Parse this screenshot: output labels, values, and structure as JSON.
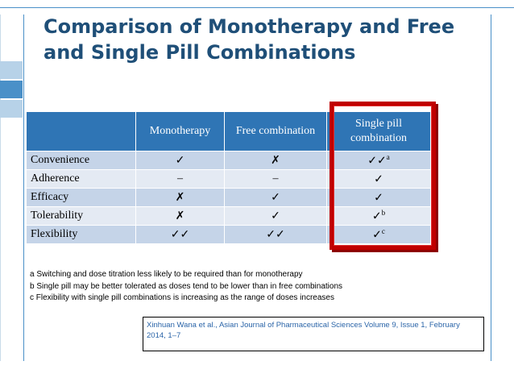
{
  "title": "Comparison of Monotherapy and Free and Single Pill Combinations",
  "table": {
    "headers": [
      "",
      "Monotherapy",
      "Free combination",
      "Single pill combination"
    ],
    "rows": [
      {
        "label": "Convenience",
        "mono": "✓",
        "free": "✗",
        "single": "✓✓",
        "single_sup": "a"
      },
      {
        "label": "Adherence",
        "mono": "–",
        "free": "–",
        "single": "✓",
        "single_sup": ""
      },
      {
        "label": "Efficacy",
        "mono": "✗",
        "free": "✓",
        "single": "✓",
        "single_sup": ""
      },
      {
        "label": "Tolerability",
        "mono": "✗",
        "free": "✓",
        "single": "✓",
        "single_sup": "b"
      },
      {
        "label": "Flexibility",
        "mono": "✓✓",
        "free": "✓✓",
        "single": "✓",
        "single_sup": "c"
      }
    ]
  },
  "footnotes": [
    "a Switching and dose titration less likely to be required than for monotherapy",
    "b Single pill may be better tolerated as doses tend to be lower than in free combinations",
    "c Flexibility with single pill combinations is increasing as the range of doses increases"
  ],
  "reference": "Xinhuan Wana et al., Asian Journal of Pharmaceutical Sciences Volume 9, Issue 1, February 2014, 1–7",
  "colors": {
    "title": "#1f4f78",
    "header": "#2f75b5",
    "highlight": "#c00000",
    "accent": "#4a90c8"
  }
}
